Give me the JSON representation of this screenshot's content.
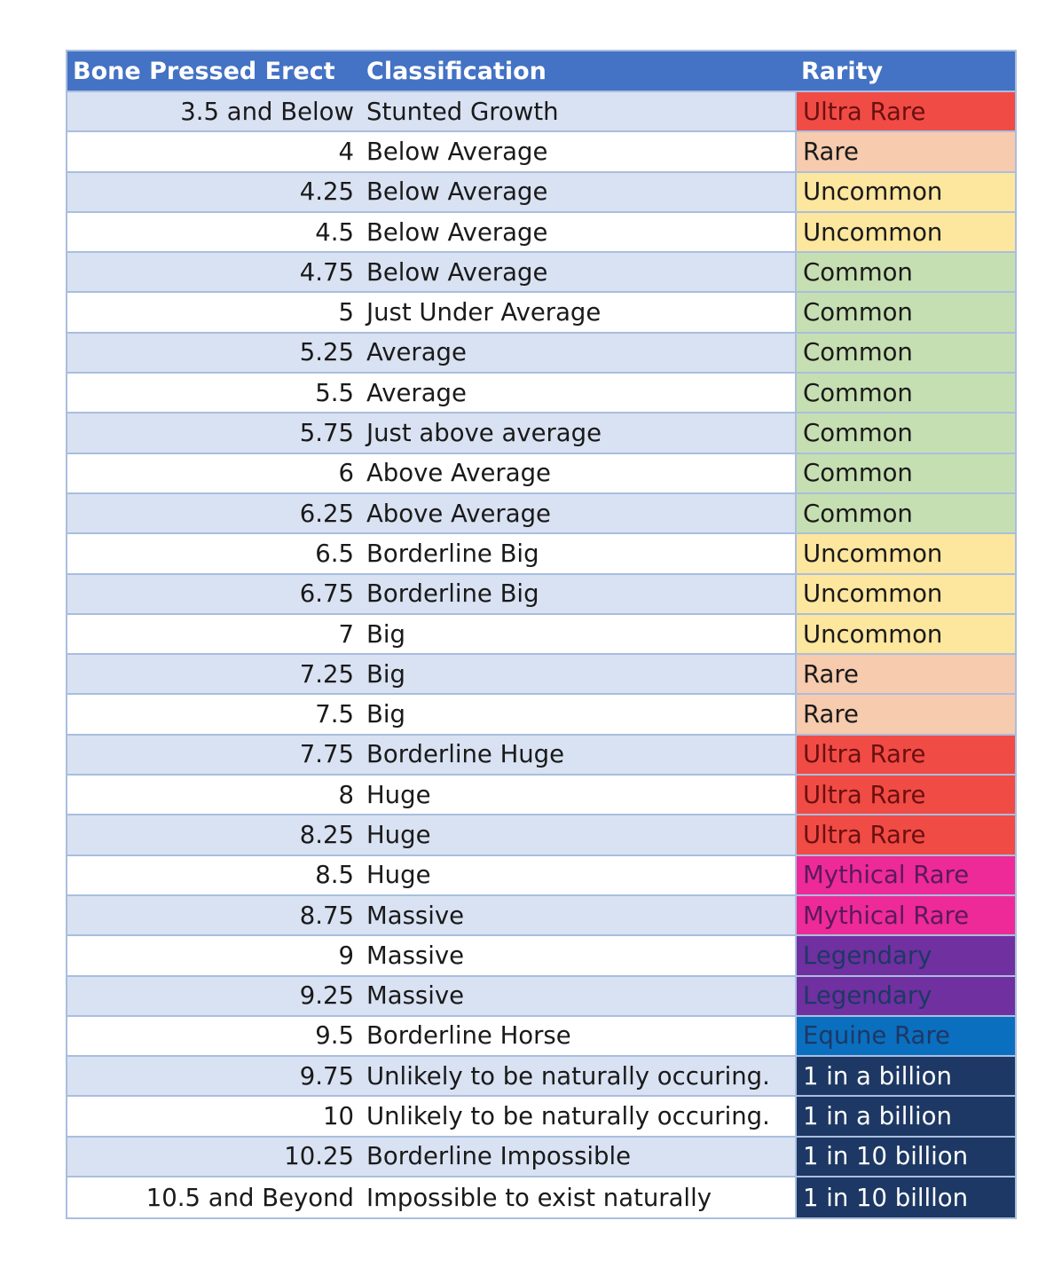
{
  "table": {
    "headers": {
      "size": "Bone Pressed Erect",
      "classification": "Classification",
      "rarity": "Rarity"
    },
    "colors": {
      "header_bg": "#4472c4",
      "band_bg": "#d9e2f3",
      "Ultra Rare": "#f14b45",
      "Rare": "#f7cbad",
      "Uncommon": "#fde69d",
      "Common": "#c6dfb2",
      "Mythical Rare": "#ee2a98",
      "Legendary": "#7030a0",
      "Equine Rare": "#0b6fbf",
      "1 in a billion": "#1d3864",
      "1 in 10 billion": "#1d3864",
      "1 in 10 billlon": "#1d3864"
    },
    "rows": [
      {
        "size": "3.5 and Below",
        "classification": "Stunted Growth",
        "rarity": "Ultra Rare"
      },
      {
        "size": "4",
        "classification": "Below Average",
        "rarity": "Rare"
      },
      {
        "size": "4.25",
        "classification": "Below Average",
        "rarity": "Uncommon"
      },
      {
        "size": "4.5",
        "classification": "Below Average",
        "rarity": "Uncommon"
      },
      {
        "size": "4.75",
        "classification": "Below Average",
        "rarity": "Common"
      },
      {
        "size": "5",
        "classification": "Just Under Average",
        "rarity": "Common"
      },
      {
        "size": "5.25",
        "classification": "Average",
        "rarity": "Common"
      },
      {
        "size": "5.5",
        "classification": "Average",
        "rarity": "Common"
      },
      {
        "size": "5.75",
        "classification": "Just above average",
        "rarity": "Common"
      },
      {
        "size": "6",
        "classification": "Above Average",
        "rarity": "Common"
      },
      {
        "size": "6.25",
        "classification": "Above Average",
        "rarity": "Common"
      },
      {
        "size": "6.5",
        "classification": "Borderline Big",
        "rarity": "Uncommon"
      },
      {
        "size": "6.75",
        "classification": "Borderline Big",
        "rarity": "Uncommon"
      },
      {
        "size": "7",
        "classification": "Big",
        "rarity": "Uncommon"
      },
      {
        "size": "7.25",
        "classification": "Big",
        "rarity": "Rare"
      },
      {
        "size": "7.5",
        "classification": "Big",
        "rarity": "Rare"
      },
      {
        "size": "7.75",
        "classification": "Borderline Huge",
        "rarity": "Ultra Rare"
      },
      {
        "size": "8",
        "classification": "Huge",
        "rarity": "Ultra Rare"
      },
      {
        "size": "8.25",
        "classification": "Huge",
        "rarity": "Ultra Rare"
      },
      {
        "size": "8.5",
        "classification": "Huge",
        "rarity": "Mythical Rare"
      },
      {
        "size": "8.75",
        "classification": "Massive",
        "rarity": "Mythical Rare"
      },
      {
        "size": "9",
        "classification": "Massive",
        "rarity": "Legendary"
      },
      {
        "size": "9.25",
        "classification": "Massive",
        "rarity": "Legendary"
      },
      {
        "size": "9.5",
        "classification": "Borderline Horse",
        "rarity": "Equine Rare"
      },
      {
        "size": "9.75",
        "classification": "Unlikely to be naturally occuring.",
        "rarity": "1 in a billion"
      },
      {
        "size": "10",
        "classification": "Unlikely to be naturally occuring.",
        "rarity": "1 in a billion"
      },
      {
        "size": "10.25",
        "classification": "Borderline Impossible",
        "rarity": "1 in  10 billion"
      },
      {
        "size": "10.5 and Beyond",
        "classification": "Impossible to exist naturally",
        "rarity": "1 in  10 billlon"
      }
    ]
  }
}
